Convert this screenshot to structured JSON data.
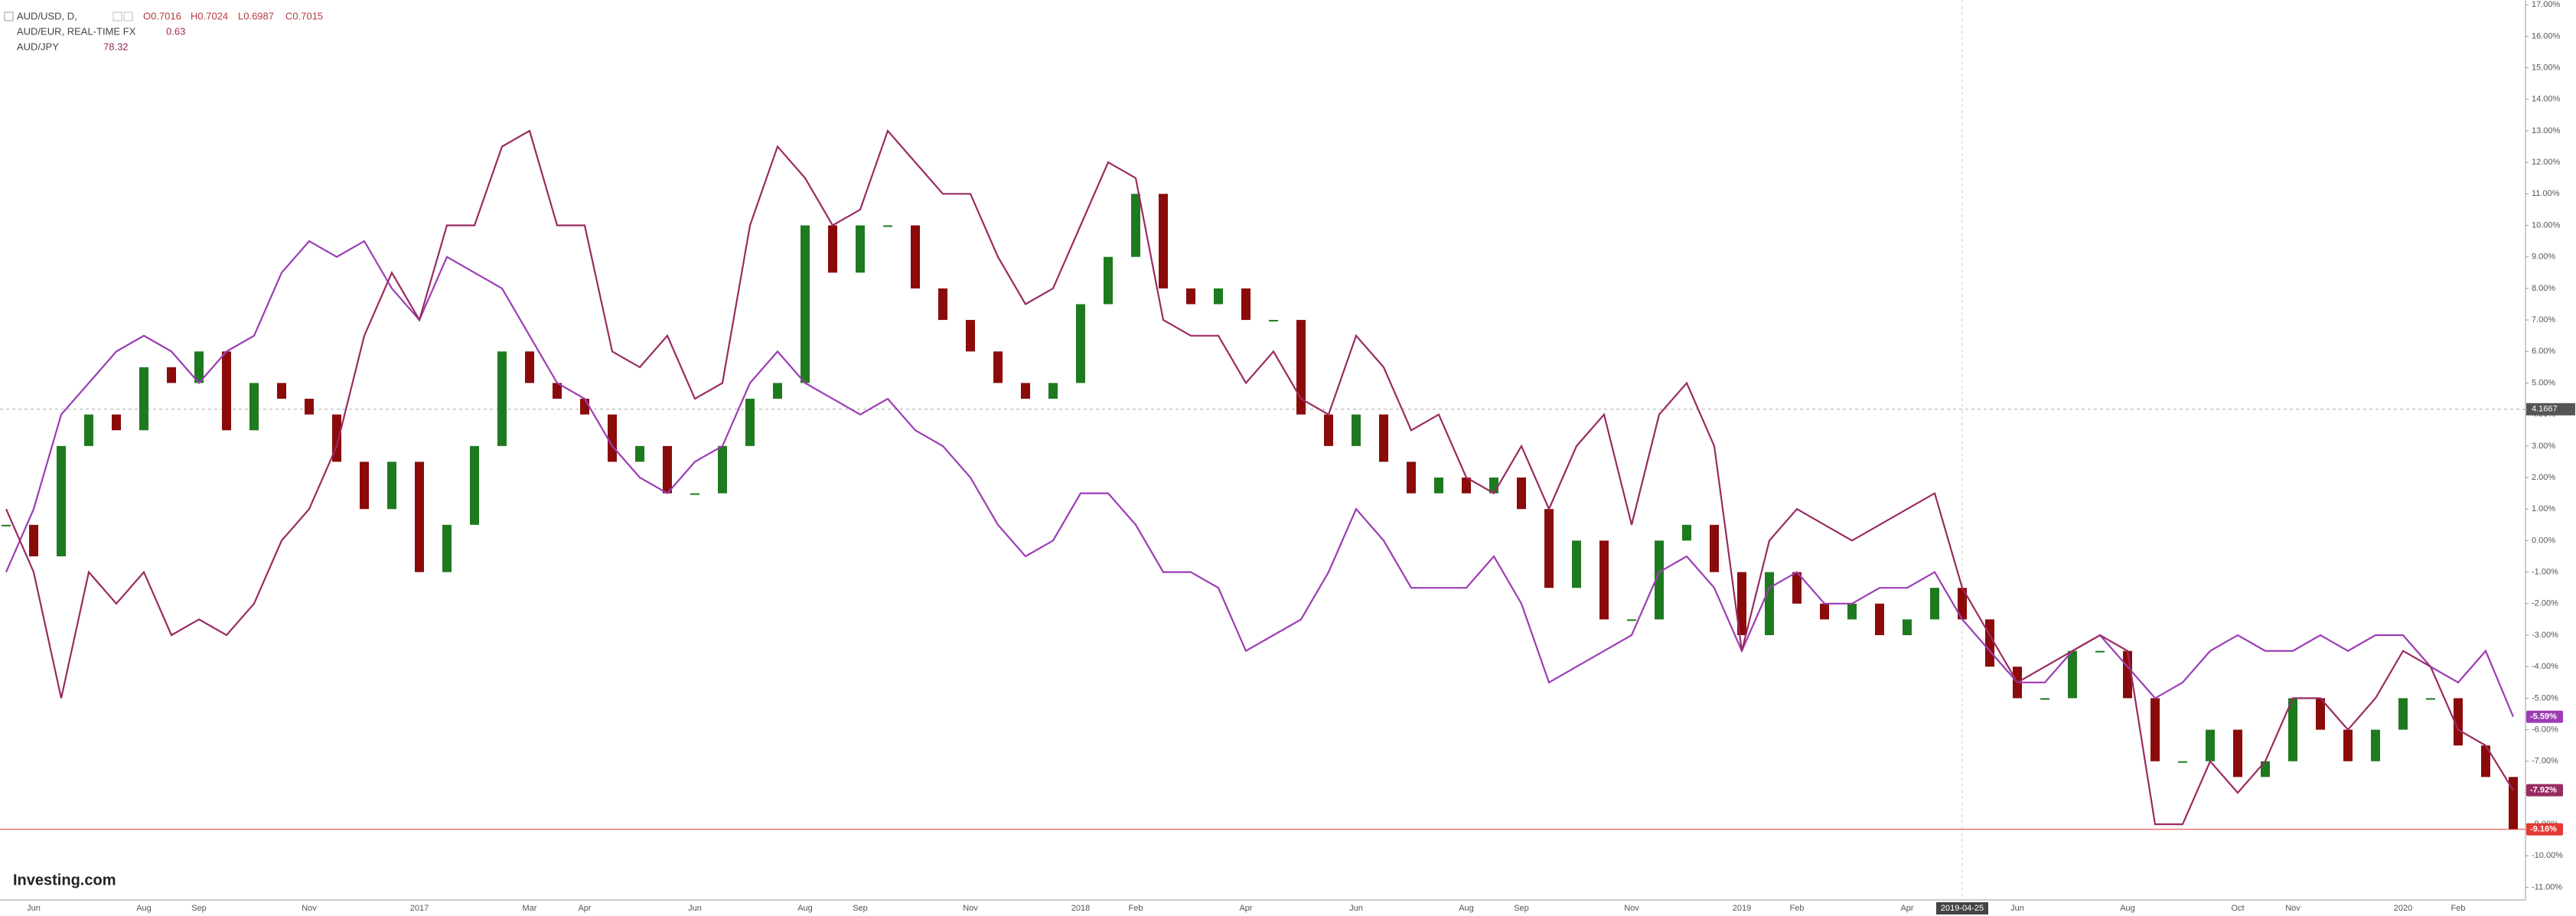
{
  "chart_data": {
    "type": "line",
    "watermark": "Investing.com",
    "categories": [
      null,
      "Jun",
      null,
      null,
      null,
      "Aug",
      null,
      "Sep",
      null,
      null,
      null,
      "Nov",
      null,
      null,
      null,
      "2017",
      null,
      null,
      null,
      "Mar",
      null,
      "Apr",
      null,
      null,
      null,
      "Jun",
      null,
      null,
      null,
      "Aug",
      null,
      "Sep",
      null,
      null,
      null,
      "Nov",
      null,
      null,
      null,
      "2018",
      null,
      "Feb",
      null,
      null,
      null,
      "Apr",
      null,
      null,
      null,
      "Jun",
      null,
      null,
      null,
      "Aug",
      null,
      "Sep",
      null,
      null,
      null,
      "Nov",
      null,
      null,
      null,
      "2019",
      null,
      "Feb",
      null,
      null,
      null,
      "Apr",
      null,
      "2019-04-25",
      null,
      "Jun",
      null,
      null,
      null,
      "Aug",
      null,
      null,
      null,
      "Oct",
      null,
      "Nov",
      null,
      null,
      null,
      "2020",
      null,
      "Feb",
      null,
      null
    ],
    "series": [
      {
        "name": "AUD/USD, D,",
        "style": "candles",
        "up_color": "#1e7a1e",
        "down_color": "#8b0a0a",
        "color": "#e53935",
        "ohlc": [
          "O0.7016",
          "H0.7024",
          "L0.6987",
          "C0.7015"
        ],
        "last_label": "-9.16%",
        "values": [
          0.5,
          -0.5,
          3,
          4,
          3.5,
          5.5,
          5,
          6,
          3.5,
          5,
          4.5,
          4,
          2.5,
          1,
          2.5,
          -1,
          0.5,
          3,
          6,
          5,
          4.5,
          4,
          2.5,
          3,
          1.5,
          1.5,
          3,
          4.5,
          5,
          10,
          8.5,
          10,
          10,
          8,
          7,
          6,
          5,
          4.5,
          5,
          7.5,
          9,
          11,
          8,
          7.5,
          8,
          7,
          7,
          4,
          3,
          4,
          2.5,
          1.5,
          2,
          1.5,
          2,
          1,
          -1.5,
          0,
          -2.5,
          -2.5,
          0,
          0.5,
          -1,
          -3,
          -1,
          -2,
          -2.5,
          -2,
          -3,
          -2.5,
          -1.5,
          -2.5,
          -4,
          -5,
          -5,
          -3.5,
          -3.5,
          -5,
          -7,
          -7,
          -6,
          -7.5,
          -7,
          -5,
          -6,
          -7,
          -6,
          -5,
          -5,
          -6.5,
          -7.5,
          -9.16
        ]
      },
      {
        "name": "AUD/EUR, REAL-TIME FX",
        "color": "#9c3cb4",
        "legend_value": "0.63",
        "last_label": "-5.59%",
        "values": [
          -1,
          1,
          4,
          5,
          6,
          6.5,
          6,
          5,
          6,
          6.5,
          8.5,
          9.5,
          9,
          9.5,
          8,
          7,
          9,
          8.5,
          8,
          6.5,
          5,
          4.5,
          3,
          2,
          1.5,
          2.5,
          3,
          5,
          6,
          5,
          4.5,
          4,
          4.5,
          3.5,
          3,
          2,
          0.5,
          -0.5,
          0,
          1.5,
          1.5,
          0.5,
          -1,
          -1,
          -1.5,
          -3.5,
          -3,
          -2.5,
          -1,
          1,
          0,
          -1.5,
          -1.5,
          -1.5,
          -0.5,
          -2,
          -4.5,
          -4,
          -3.5,
          -3,
          -1,
          -0.5,
          -1.5,
          -3.5,
          -1.5,
          -1,
          -2,
          -2,
          -1.5,
          -1.5,
          -1,
          -2.5,
          -3.5,
          -4.5,
          -4.5,
          -3.5,
          -3,
          -4,
          -5,
          -4.5,
          -3.5,
          -3,
          -3.5,
          -3.5,
          -3,
          -3.5,
          -3,
          -3,
          -4,
          -4.5,
          -3.5,
          -5.59
        ]
      },
      {
        "name": "AUD/JPY",
        "color": "#9a2a62",
        "legend_value": "78.32",
        "last_label": "-7.92%",
        "values": [
          1,
          -1,
          -5,
          -1,
          -2,
          -1,
          -3,
          -2.5,
          -3,
          -2,
          0,
          1,
          3,
          6.5,
          8.5,
          7,
          10,
          10,
          12.5,
          13,
          10,
          10,
          6,
          5.5,
          6.5,
          4.5,
          5,
          10,
          12.5,
          11.5,
          10,
          10.5,
          13,
          12,
          11,
          11,
          9,
          7.5,
          8,
          10,
          12,
          11.5,
          7,
          6.5,
          6.5,
          5,
          6,
          4.5,
          4,
          6.5,
          5.5,
          3.5,
          4,
          2,
          1.5,
          3,
          1,
          3,
          4,
          0.5,
          4,
          5,
          3,
          -3.5,
          0,
          1,
          0.5,
          0,
          0.5,
          1,
          1.5,
          -1.5,
          -3,
          -4.5,
          -4,
          -3.5,
          -3,
          -3.5,
          -9,
          -9,
          -7,
          -8,
          -7,
          -5,
          -5,
          -6,
          -5,
          -3.5,
          -4,
          -6,
          -6.5,
          -7.92
        ]
      }
    ],
    "crosshair": {
      "x": 71,
      "y": 4.1667
    },
    "ylim": [
      -11.4,
      17.15
    ],
    "yticks": [
      {
        "value": -11,
        "label": "-11.00%"
      },
      {
        "value": -10,
        "label": "-10.00%"
      },
      {
        "value": -9,
        "label": "-9.00%"
      },
      {
        "value": -8,
        "label": "-8.00%"
      },
      {
        "value": -7,
        "label": "-7.00%"
      },
      {
        "value": -6,
        "label": "-6.00%"
      },
      {
        "value": -5,
        "label": "-5.00%"
      },
      {
        "value": -4,
        "label": "-4.00%"
      },
      {
        "value": -3,
        "label": "-3.00%"
      },
      {
        "value": -2,
        "label": "-2.00%"
      },
      {
        "value": -1,
        "label": "-1.00%"
      },
      {
        "value": 0,
        "label": "0.00%"
      },
      {
        "value": 1,
        "label": "1.00%"
      },
      {
        "value": 2,
        "label": "2.00%"
      },
      {
        "value": 3,
        "label": "3.00%"
      },
      {
        "value": 4,
        "label": "4.00%"
      },
      {
        "value": 5,
        "label": "5.00%"
      },
      {
        "value": 6,
        "label": "6.00%"
      },
      {
        "value": 7,
        "label": "7.00%"
      },
      {
        "value": 8,
        "label": "8.00%"
      },
      {
        "value": 9,
        "label": "9.00%"
      },
      {
        "value": 10,
        "label": "10.00%"
      },
      {
        "value": 11,
        "label": "11.00%"
      },
      {
        "value": 12,
        "label": "12.00%"
      },
      {
        "value": 13,
        "label": "13.00%"
      },
      {
        "value": 14,
        "label": "14.00%"
      },
      {
        "value": 15,
        "label": "15.00%"
      },
      {
        "value": 16,
        "label": "16.00%"
      },
      {
        "value": 17,
        "label": "17.00%"
      }
    ],
    "grid": false
  }
}
